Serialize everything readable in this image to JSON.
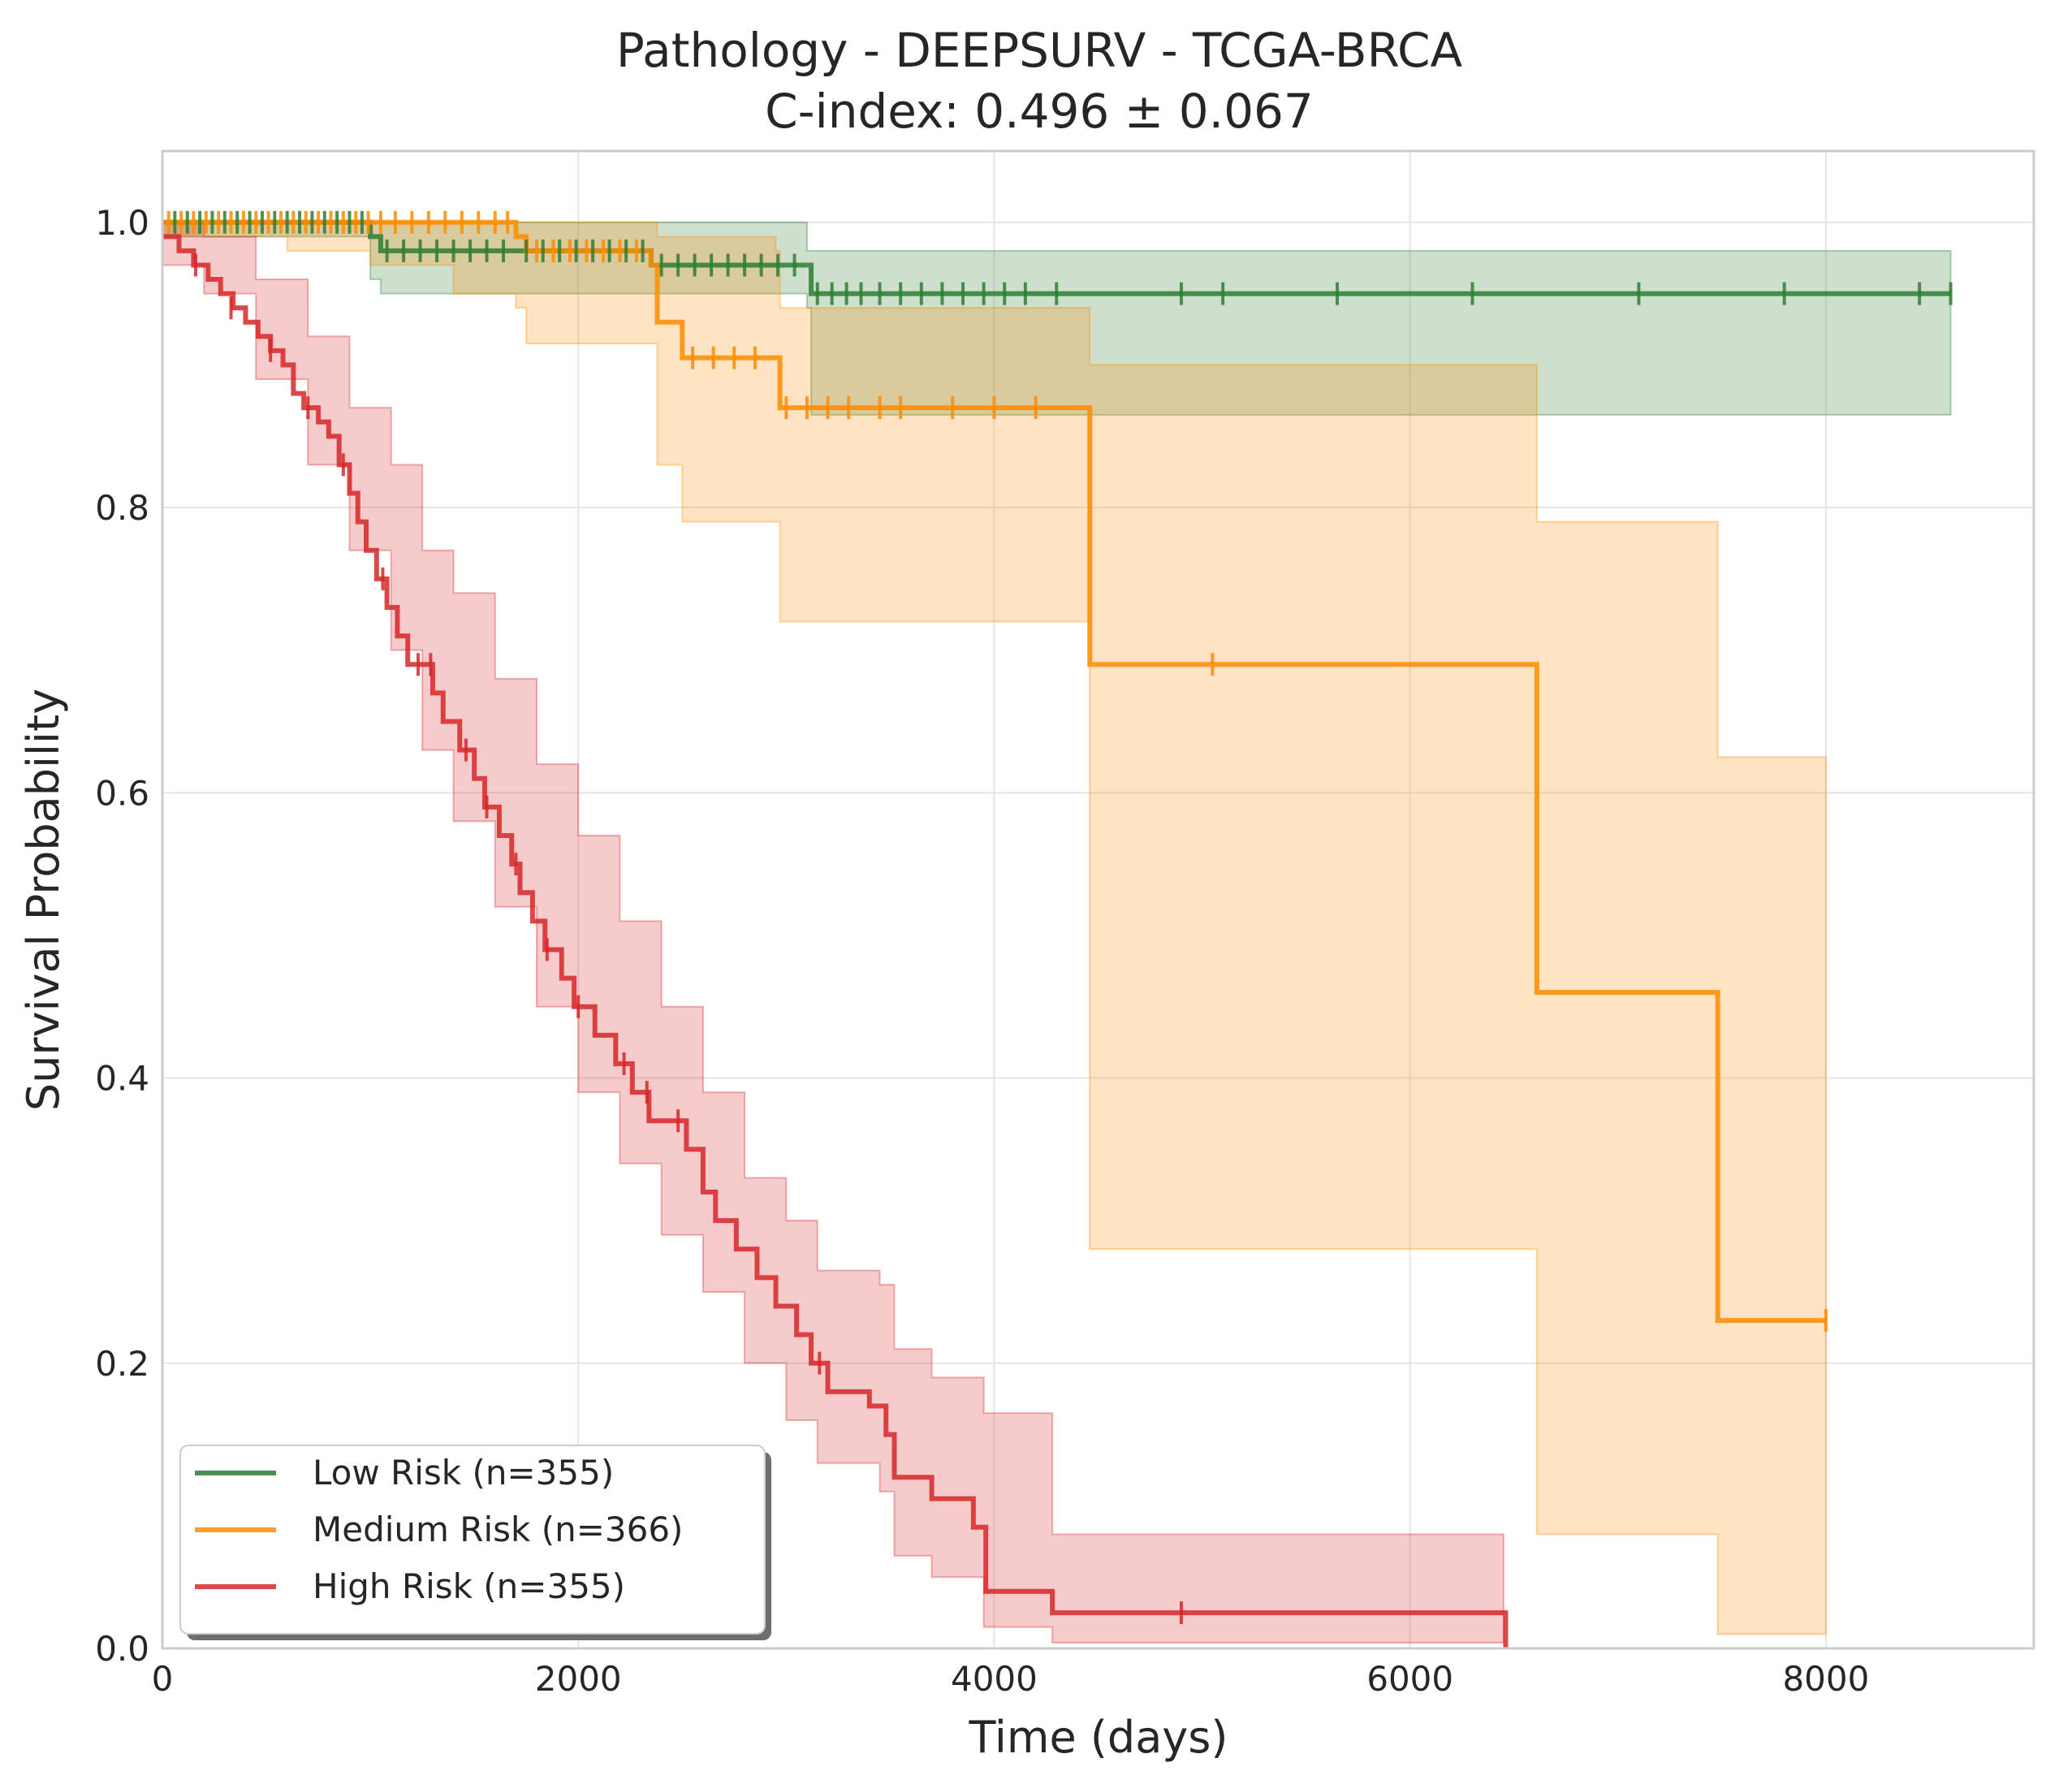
{
  "chart_data": {
    "type": "line",
    "subtype": "kaplan-meier",
    "title": "Pathology - DEEPSURV - TCGA-BRCA",
    "subtitle": "C-index: 0.496 ± 0.067",
    "xlabel": "Time (days)",
    "ylabel": "Survival Probability",
    "xlim": [
      0,
      9000
    ],
    "ylim": [
      0,
      1.05
    ],
    "xticks": [
      0,
      2000,
      4000,
      6000,
      8000
    ],
    "xtick_labels": [
      "0",
      "2000",
      "4000",
      "6000",
      "8000"
    ],
    "yticks": [
      0,
      0.2,
      0.4,
      0.6,
      0.8,
      1.0
    ],
    "ytick_labels": [
      "0.0",
      "0.2",
      "0.4",
      "0.6",
      "0.8",
      "1.0"
    ],
    "grid": true,
    "legend_position": "lower-left",
    "series": [
      {
        "name": "Low Risk (n=355)",
        "color": "#2e7d32",
        "steps": [
          [
            0,
            1.0
          ],
          [
            1000,
            0.99
          ],
          [
            1050,
            0.98
          ],
          [
            1700,
            0.98
          ],
          [
            2350,
            0.97
          ],
          [
            3100,
            0.97
          ],
          [
            3120,
            0.95
          ],
          [
            8600,
            0.95
          ]
        ],
        "ci_upper": [
          [
            0,
            1.0
          ],
          [
            2350,
            1.0
          ],
          [
            3100,
            0.98
          ],
          [
            3120,
            0.98
          ],
          [
            8600,
            0.98
          ]
        ],
        "ci_lower": [
          [
            0,
            0.99
          ],
          [
            1000,
            0.96
          ],
          [
            1050,
            0.95
          ],
          [
            1700,
            0.95
          ],
          [
            2350,
            0.95
          ],
          [
            3100,
            0.94
          ],
          [
            3120,
            0.865
          ],
          [
            8600,
            0.865
          ]
        ],
        "censors": [
          [
            60,
            1.0
          ],
          [
            120,
            1.0
          ],
          [
            180,
            1.0
          ],
          [
            240,
            1.0
          ],
          [
            300,
            1.0
          ],
          [
            360,
            1.0
          ],
          [
            420,
            1.0
          ],
          [
            480,
            1.0
          ],
          [
            540,
            1.0
          ],
          [
            600,
            1.0
          ],
          [
            660,
            1.0
          ],
          [
            720,
            1.0
          ],
          [
            780,
            1.0
          ],
          [
            840,
            1.0
          ],
          [
            900,
            1.0
          ],
          [
            960,
            1.0
          ],
          [
            1080,
            0.98
          ],
          [
            1160,
            0.98
          ],
          [
            1240,
            0.98
          ],
          [
            1320,
            0.98
          ],
          [
            1400,
            0.98
          ],
          [
            1480,
            0.98
          ],
          [
            1560,
            0.98
          ],
          [
            1640,
            0.98
          ],
          [
            1750,
            0.98
          ],
          [
            1830,
            0.98
          ],
          [
            1910,
            0.98
          ],
          [
            1990,
            0.98
          ],
          [
            2070,
            0.98
          ],
          [
            2150,
            0.98
          ],
          [
            2230,
            0.98
          ],
          [
            2310,
            0.98
          ],
          [
            2400,
            0.97
          ],
          [
            2480,
            0.97
          ],
          [
            2560,
            0.97
          ],
          [
            2640,
            0.97
          ],
          [
            2720,
            0.97
          ],
          [
            2800,
            0.97
          ],
          [
            2880,
            0.97
          ],
          [
            2960,
            0.97
          ],
          [
            3040,
            0.97
          ],
          [
            3150,
            0.95
          ],
          [
            3220,
            0.95
          ],
          [
            3290,
            0.95
          ],
          [
            3360,
            0.95
          ],
          [
            3450,
            0.95
          ],
          [
            3550,
            0.95
          ],
          [
            3650,
            0.95
          ],
          [
            3750,
            0.95
          ],
          [
            3850,
            0.95
          ],
          [
            3950,
            0.95
          ],
          [
            4050,
            0.95
          ],
          [
            4150,
            0.95
          ],
          [
            4300,
            0.95
          ],
          [
            4900,
            0.95
          ],
          [
            5100,
            0.95
          ],
          [
            5650,
            0.95
          ],
          [
            6300,
            0.95
          ],
          [
            7100,
            0.95
          ],
          [
            7800,
            0.95
          ],
          [
            8450,
            0.95
          ],
          [
            8600,
            0.95
          ]
        ]
      },
      {
        "name": "Medium Risk (n=366)",
        "color": "#ff8c00",
        "steps": [
          [
            0,
            1.0
          ],
          [
            1700,
            0.99
          ],
          [
            1750,
            0.98
          ],
          [
            2350,
            0.97
          ],
          [
            2380,
            0.93
          ],
          [
            2480,
            0.93
          ],
          [
            2500,
            0.905
          ],
          [
            2950,
            0.905
          ],
          [
            2970,
            0.87
          ],
          [
            4450,
            0.87
          ],
          [
            4460,
            0.69
          ],
          [
            6600,
            0.69
          ],
          [
            6610,
            0.46
          ],
          [
            7470,
            0.46
          ],
          [
            7480,
            0.23
          ],
          [
            8000,
            0.23
          ]
        ],
        "ci_upper": [
          [
            0,
            1.0
          ],
          [
            2350,
            1.0
          ],
          [
            2380,
            0.99
          ],
          [
            2950,
            0.98
          ],
          [
            2970,
            0.94
          ],
          [
            4450,
            0.94
          ],
          [
            4460,
            0.9
          ],
          [
            6600,
            0.9
          ],
          [
            6610,
            0.79
          ],
          [
            7470,
            0.79
          ],
          [
            7480,
            0.625
          ],
          [
            8000,
            0.625
          ]
        ],
        "ci_lower": [
          [
            0,
            0.99
          ],
          [
            600,
            0.98
          ],
          [
            1000,
            0.97
          ],
          [
            1400,
            0.95
          ],
          [
            1700,
            0.94
          ],
          [
            1750,
            0.915
          ],
          [
            2350,
            0.915
          ],
          [
            2380,
            0.83
          ],
          [
            2480,
            0.83
          ],
          [
            2500,
            0.79
          ],
          [
            2950,
            0.79
          ],
          [
            2970,
            0.72
          ],
          [
            4450,
            0.72
          ],
          [
            4460,
            0.28
          ],
          [
            6600,
            0.28
          ],
          [
            6610,
            0.08
          ],
          [
            7470,
            0.08
          ],
          [
            7480,
            0.01
          ],
          [
            8000,
            0.01
          ]
        ],
        "censors": [
          [
            30,
            1.0
          ],
          [
            90,
            1.0
          ],
          [
            150,
            1.0
          ],
          [
            210,
            1.0
          ],
          [
            270,
            1.0
          ],
          [
            330,
            1.0
          ],
          [
            390,
            1.0
          ],
          [
            450,
            1.0
          ],
          [
            510,
            1.0
          ],
          [
            570,
            1.0
          ],
          [
            630,
            1.0
          ],
          [
            690,
            1.0
          ],
          [
            750,
            1.0
          ],
          [
            810,
            1.0
          ],
          [
            870,
            1.0
          ],
          [
            930,
            1.0
          ],
          [
            990,
            1.0
          ],
          [
            1050,
            1.0
          ],
          [
            1120,
            1.0
          ],
          [
            1200,
            1.0
          ],
          [
            1280,
            1.0
          ],
          [
            1360,
            1.0
          ],
          [
            1440,
            1.0
          ],
          [
            1520,
            1.0
          ],
          [
            1600,
            1.0
          ],
          [
            1660,
            1.0
          ],
          [
            1800,
            0.98
          ],
          [
            1880,
            0.98
          ],
          [
            1960,
            0.98
          ],
          [
            2040,
            0.98
          ],
          [
            2120,
            0.98
          ],
          [
            2200,
            0.98
          ],
          [
            2280,
            0.98
          ],
          [
            2550,
            0.905
          ],
          [
            2650,
            0.905
          ],
          [
            2750,
            0.905
          ],
          [
            2850,
            0.905
          ],
          [
            3000,
            0.87
          ],
          [
            3100,
            0.87
          ],
          [
            3200,
            0.87
          ],
          [
            3300,
            0.87
          ],
          [
            3450,
            0.87
          ],
          [
            3550,
            0.87
          ],
          [
            3800,
            0.87
          ],
          [
            4000,
            0.87
          ],
          [
            4200,
            0.87
          ],
          [
            5050,
            0.69
          ],
          [
            8000,
            0.23
          ]
        ]
      },
      {
        "name": "High Risk (n=355)",
        "color": "#d62728",
        "steps": [
          [
            0,
            0.99
          ],
          [
            80,
            0.98
          ],
          [
            150,
            0.97
          ],
          [
            220,
            0.96
          ],
          [
            280,
            0.95
          ],
          [
            340,
            0.94
          ],
          [
            400,
            0.93
          ],
          [
            460,
            0.92
          ],
          [
            520,
            0.91
          ],
          [
            580,
            0.9
          ],
          [
            630,
            0.88
          ],
          [
            680,
            0.87
          ],
          [
            750,
            0.86
          ],
          [
            800,
            0.85
          ],
          [
            850,
            0.83
          ],
          [
            900,
            0.81
          ],
          [
            940,
            0.79
          ],
          [
            980,
            0.77
          ],
          [
            1030,
            0.75
          ],
          [
            1080,
            0.73
          ],
          [
            1130,
            0.71
          ],
          [
            1180,
            0.69
          ],
          [
            1300,
            0.67
          ],
          [
            1350,
            0.65
          ],
          [
            1430,
            0.63
          ],
          [
            1500,
            0.61
          ],
          [
            1550,
            0.59
          ],
          [
            1620,
            0.57
          ],
          [
            1680,
            0.55
          ],
          [
            1720,
            0.53
          ],
          [
            1780,
            0.51
          ],
          [
            1840,
            0.49
          ],
          [
            1920,
            0.47
          ],
          [
            1980,
            0.45
          ],
          [
            2080,
            0.43
          ],
          [
            2180,
            0.41
          ],
          [
            2260,
            0.39
          ],
          [
            2340,
            0.37
          ],
          [
            2520,
            0.35
          ],
          [
            2600,
            0.32
          ],
          [
            2660,
            0.3
          ],
          [
            2760,
            0.28
          ],
          [
            2860,
            0.26
          ],
          [
            2950,
            0.24
          ],
          [
            3050,
            0.22
          ],
          [
            3120,
            0.2
          ],
          [
            3200,
            0.18
          ],
          [
            3400,
            0.17
          ],
          [
            3480,
            0.15
          ],
          [
            3520,
            0.12
          ],
          [
            3700,
            0.105
          ],
          [
            3900,
            0.085
          ],
          [
            3960,
            0.04
          ],
          [
            4280,
            0.025
          ],
          [
            6450,
            0.025
          ],
          [
            6460,
            0.0
          ]
        ],
        "ci_upper": [
          [
            0,
            1.0
          ],
          [
            200,
            0.99
          ],
          [
            450,
            0.96
          ],
          [
            700,
            0.92
          ],
          [
            900,
            0.87
          ],
          [
            1100,
            0.83
          ],
          [
            1250,
            0.77
          ],
          [
            1400,
            0.74
          ],
          [
            1600,
            0.68
          ],
          [
            1800,
            0.62
          ],
          [
            2000,
            0.57
          ],
          [
            2200,
            0.51
          ],
          [
            2400,
            0.45
          ],
          [
            2600,
            0.39
          ],
          [
            2800,
            0.33
          ],
          [
            3000,
            0.3
          ],
          [
            3150,
            0.265
          ],
          [
            3450,
            0.255
          ],
          [
            3520,
            0.21
          ],
          [
            3700,
            0.19
          ],
          [
            3950,
            0.165
          ],
          [
            4280,
            0.08
          ],
          [
            6450,
            0.08
          ]
        ],
        "ci_lower": [
          [
            0,
            0.97
          ],
          [
            200,
            0.95
          ],
          [
            450,
            0.89
          ],
          [
            700,
            0.83
          ],
          [
            900,
            0.77
          ],
          [
            1100,
            0.7
          ],
          [
            1250,
            0.63
          ],
          [
            1400,
            0.58
          ],
          [
            1600,
            0.52
          ],
          [
            1800,
            0.45
          ],
          [
            2000,
            0.39
          ],
          [
            2200,
            0.34
          ],
          [
            2400,
            0.29
          ],
          [
            2600,
            0.25
          ],
          [
            2800,
            0.2
          ],
          [
            3000,
            0.16
          ],
          [
            3150,
            0.13
          ],
          [
            3450,
            0.11
          ],
          [
            3520,
            0.065
          ],
          [
            3700,
            0.05
          ],
          [
            3950,
            0.015
          ],
          [
            4280,
            0.004
          ],
          [
            6450,
            0.004
          ]
        ],
        "censors": [
          [
            160,
            0.97
          ],
          [
            330,
            0.94
          ],
          [
            520,
            0.91
          ],
          [
            700,
            0.87
          ],
          [
            870,
            0.83
          ],
          [
            1060,
            0.75
          ],
          [
            1230,
            0.69
          ],
          [
            1290,
            0.69
          ],
          [
            1460,
            0.63
          ],
          [
            1560,
            0.59
          ],
          [
            1700,
            0.55
          ],
          [
            1850,
            0.49
          ],
          [
            2000,
            0.45
          ],
          [
            2220,
            0.41
          ],
          [
            2330,
            0.39
          ],
          [
            2480,
            0.37
          ],
          [
            3160,
            0.2
          ],
          [
            4900,
            0.025
          ]
        ]
      }
    ]
  }
}
